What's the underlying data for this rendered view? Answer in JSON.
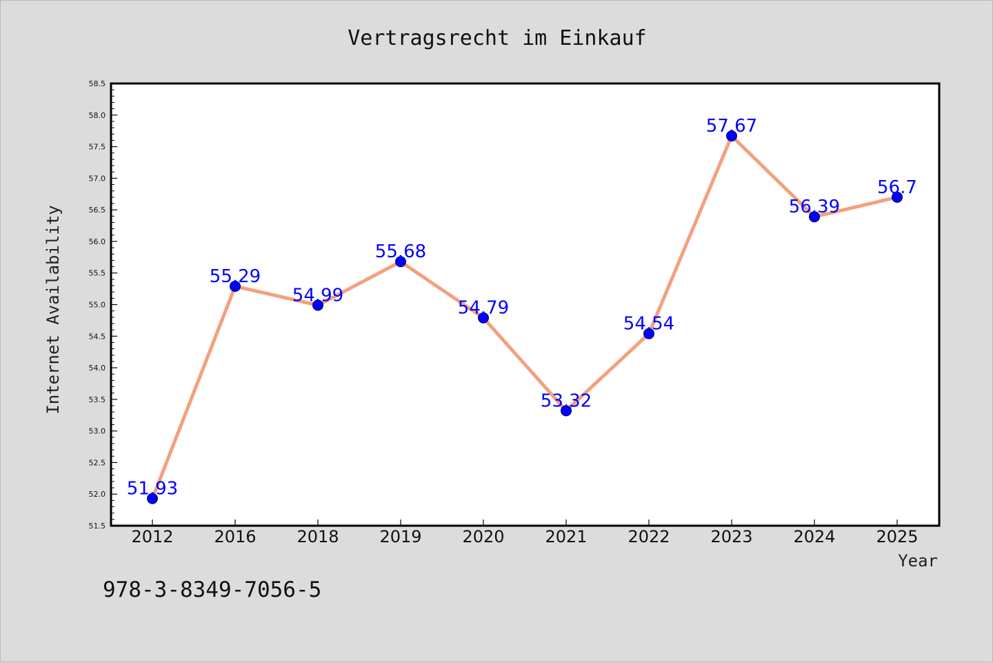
{
  "chart_data": {
    "type": "line",
    "title": "Vertragsrecht im Einkauf",
    "xlabel": "Year",
    "ylabel": "Internet Availability",
    "categories": [
      "2012",
      "2016",
      "2018",
      "2019",
      "2020",
      "2021",
      "2022",
      "2023",
      "2024",
      "2025"
    ],
    "series": [
      {
        "values": [
          51.93,
          55.29,
          54.99,
          55.68,
          54.79,
          53.32,
          54.54,
          57.67,
          56.39,
          56.7
        ],
        "data_labels": [
          "51.93",
          "55.29",
          "54.99",
          "55.68",
          "54.79",
          "53.32",
          "54.54",
          "57.67",
          "56.39",
          "56.7"
        ],
        "line_color": "#f4a07f",
        "marker_color": "#0000ff"
      }
    ],
    "ylim": [
      51.5,
      58.5
    ],
    "yticks": [
      "51.5",
      "52.0",
      "52.5",
      "53.0",
      "53.5",
      "54.0",
      "54.5",
      "55.0",
      "55.5",
      "56.0",
      "56.5",
      "57.0",
      "57.5",
      "58.0",
      "58.5"
    ],
    "grid": false,
    "legend": "none"
  },
  "footer": {
    "isbn": "978-3-8349-7056-5"
  },
  "colors": {
    "background": "#dcdcdc",
    "plot_background": "#ffffff",
    "data_label": "#0000ff"
  }
}
